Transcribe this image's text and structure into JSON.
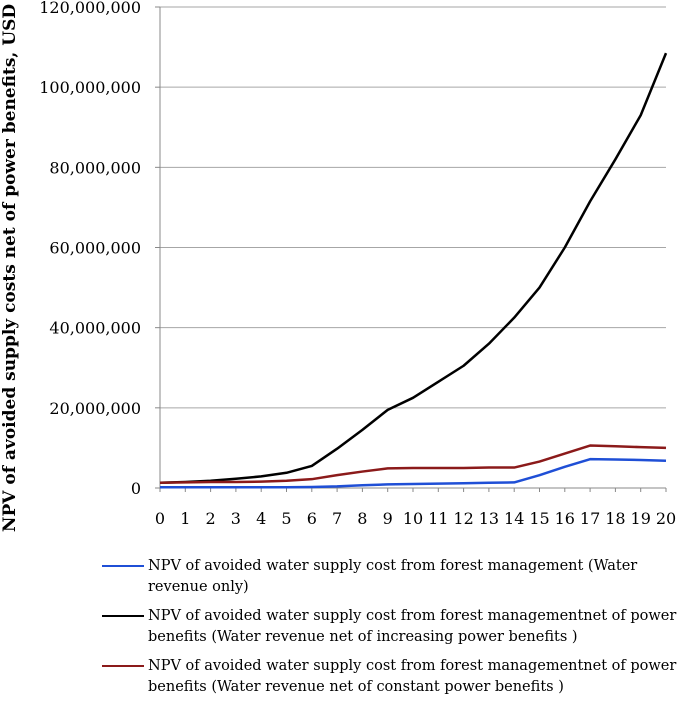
{
  "chart_data": {
    "type": "line",
    "title": "",
    "xlabel": "",
    "ylabel": "NPV of avoided supply costs net of power benefits, USD",
    "x": [
      0,
      1,
      2,
      3,
      4,
      5,
      6,
      7,
      8,
      9,
      10,
      11,
      12,
      13,
      14,
      15,
      16,
      17,
      18,
      19,
      20
    ],
    "ylim": [
      0,
      120000000
    ],
    "yticks": [
      0,
      20000000,
      40000000,
      60000000,
      80000000,
      100000000,
      120000000
    ],
    "ytick_labels": [
      "0",
      "20,000,000",
      "40,000,000",
      "60,000,000",
      "80,000,000",
      "100,000,000",
      "120,000,000"
    ],
    "xtick_labels": [
      "0",
      "1",
      "2",
      "3",
      "4",
      "5",
      "6",
      "7",
      "8",
      "9",
      "10",
      "11",
      "12",
      "13",
      "14",
      "15",
      "16",
      "17",
      "18",
      "19",
      "20"
    ],
    "grid": true,
    "legend_position": "bottom",
    "series": [
      {
        "name": "NPV of avoided water supply cost from forest management (Water revenue only)",
        "color": "#1f4fd6",
        "values": [
          200000,
          200000,
          200000,
          200000,
          200000,
          200000,
          250000,
          400000,
          700000,
          900000,
          1000000,
          1100000,
          1200000,
          1300000,
          1400000,
          3200000,
          5300000,
          7200000,
          7100000,
          7000000,
          6800000
        ]
      },
      {
        "name": "NPV of avoided water supply cost from forest managementnet of power benefits (Water revenue net of increasing power benefits )",
        "color": "#000000",
        "values": [
          1300000,
          1500000,
          1800000,
          2300000,
          2900000,
          3800000,
          5500000,
          9800000,
          14500000,
          19500000,
          22500000,
          26500000,
          30500000,
          36000000,
          42500000,
          50000000,
          60000000,
          71500000,
          82000000,
          93000000,
          108500000
        ]
      },
      {
        "name": "NPV of avoided water supply cost from forest managementnet of power benefits (Water revenue net of constant power benefits )",
        "color": "#8b1a1a",
        "values": [
          1300000,
          1400000,
          1500000,
          1500000,
          1600000,
          1800000,
          2200000,
          3200000,
          4100000,
          4900000,
          5000000,
          5000000,
          5000000,
          5100000,
          5100000,
          6600000,
          8600000,
          10600000,
          10400000,
          10200000,
          10000000
        ]
      }
    ]
  }
}
